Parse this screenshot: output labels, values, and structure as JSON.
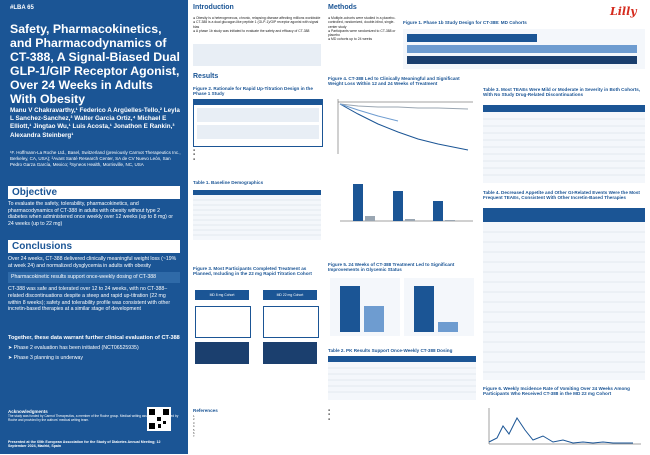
{
  "poster_id": "#LBA 65",
  "title": "Safety, Pharmacokinetics, and Pharmacodynamics of CT-388, A Signal-Biased Dual GLP-1/GIP Receptor Agonist, Over 24 Weeks in Adults With Obesity",
  "authors": "Manu V Chakravarthy,¹ Federico A Argüelles-Tello,² Leyla L Sanchez-Sanchez,³ Walter Garcia Ortiz,⁴ Michael E Elliott,¹ Jingtao Wu,¹ Luis Acosta,¹ Jonathon E Rankin,³ Alexandra Steinberg¹",
  "affiliations": "¹F. Hoffmann-La Roche Ltd., Basel, Switzerland (previously Carmot Therapeutics Inc., Berkeley, CA, USA); ²Avant Santé Research Center, SA de CV Nuevo León, San Pedro Garza García, Mexico; ³Syneos Health, Morrisville, NC, USA",
  "objective": {
    "heading": "Objective",
    "text": "To evaluate the safety, tolerability, pharmacokinetics, and pharmacodynamics of CT-388 in adults with obesity without type 2 diabetes when administered once weekly over 12 weeks (up to 8 mg) or 24 weeks (up to 22 mg)"
  },
  "conclusions": {
    "heading": "Conclusions",
    "items": [
      "Over 24 weeks, CT-388 delivered clinically meaningful weight loss (~19% at week 24) and normalized dysglycemia in adults with obesity",
      "Pharmacokinetic results support once-weekly dosing of CT-388",
      "CT-388 was safe and tolerated over 12 to 24 weeks, with no CT-388–related discontinuations despite a steep and rapid up-titration (22 mg within 8 weeks); safety and tolerability profile was consistent with other incretin-based therapies at a similar stage of development"
    ],
    "further": "Together, these data warrant further clinical evaluation of CT-388",
    "phases": [
      "Phase 2 evaluation has been initiated (NCT06525935)",
      "Phase 3 planning is underway"
    ]
  },
  "acknowledgments": {
    "heading": "Acknowledgments",
    "text": "The study was funded by Carmot Therapeutics, a member of the Roche group. Medical writing assistance was funded by Roche and provided by the authors' medical writing team."
  },
  "presented": "Presented at the 60th European Association for the Study of Diabetes Annual Meeting; 12 September 2024, Madrid, Spain",
  "introduction": {
    "heading": "Introduction",
    "bullets": [
      "Obesity is a heterogeneous, chronic, relapsing disease affecting millions worldwide",
      "CT-388 is a dual glucagon-like peptide 1 (GLP-1)/GIP receptor agonist with signal bias",
      "A phase 1b study was initiated to evaluate the safety and efficacy of CT-388"
    ]
  },
  "methods": {
    "heading": "Methods",
    "bullets": [
      "Multiple-cohorts were studied in a placebo-controlled, randomized, double-blind, single-center study",
      "Participants were randomized to CT-388 or placebo",
      "MD cohorts up to 24 weeks"
    ]
  },
  "fig1_title": "Figure 1. Phase 1b Study Design for CT-388: MD Cohorts",
  "results_heading": "Results",
  "fig2_title": "Figure 2. Rationale for Rapid Up-Titration Design in the Phase 1 Study",
  "fig3_title": "Figure 3. Most Participants Completed Treatment as Planned, Including in the 22 mg Rapid Titration Cohort",
  "table1_title": "Table 1. Baseline Demographics",
  "fig4_title": "Figure 4. CT-388 Led to Clinically Meaningful and Significant Weight Loss Within 12 and 24 Weeks of Treatment",
  "fig5_title": "Figure 5. 24 Weeks of CT-388 Treatment Led to Significant Improvements in Glycemic Status",
  "table2_title": "Table 2. PK Results Support Once-Weekly CT-388 Dosing",
  "table3_title": "Table 3. Most TEAEs Were Mild or Moderate in Severity in Both Cohorts, With No Study Drug-Related Discontinuations",
  "table4_title": "Table 4. Decreased Appetite and Other GI-Related Events Were the Most Frequent TEAEs, Consistent With Other Incretin-Based Therapies",
  "fig6_title": "Figure 6. Weekly Incidence Rate of Vomiting Over 24 Weeks Among Participants Who Received CT-388 in the MD 22 mg Cohort",
  "references_heading": "References",
  "company_logo": "Lilly",
  "cohort_boxes": [
    "MD 8 mg Cohort",
    "MD 22 mg Cohort"
  ],
  "colors": {
    "primary": "#1b5595",
    "accent": "#2f6aa8",
    "light": "#e8eef5",
    "placebo": "#9aa6b2",
    "ct388": "#1b5595"
  }
}
